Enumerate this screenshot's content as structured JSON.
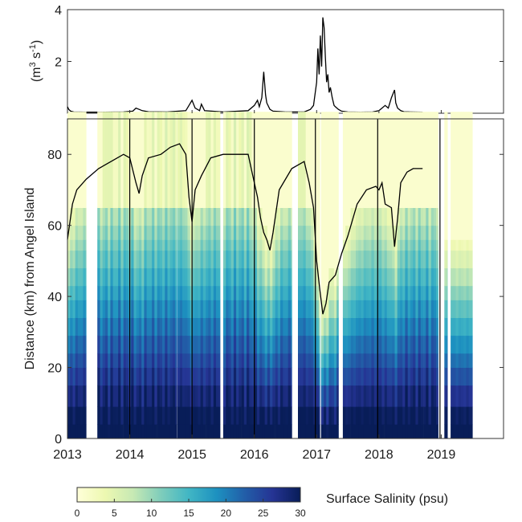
{
  "chart_data": [
    {
      "type": "line",
      "ylabel": "(m³ s⁻¹)",
      "ylabel_parts": {
        "prefix": "(m",
        "sup1": "3",
        "middle": " s",
        "sup2": "-1",
        "suffix": ")"
      },
      "xlim": [
        2013,
        2020
      ],
      "ylim": [
        0,
        4
      ],
      "yticks": [
        2,
        4
      ],
      "grid": false,
      "series": [
        {
          "x": [
            2013.0,
            2013.02,
            2013.05,
            2013.1,
            2013.3,
            2013.6,
            2013.9,
            2014.05,
            2014.1,
            2014.15,
            2014.2,
            2014.3,
            2014.6,
            2014.9,
            2014.95,
            2015.0,
            2015.05,
            2015.12,
            2015.15,
            2015.2,
            2015.5,
            2015.9,
            2016.0,
            2016.05,
            2016.08,
            2016.12,
            2016.15,
            2016.18,
            2016.2,
            2016.25,
            2016.3,
            2016.5,
            2016.8,
            2016.9,
            2016.95,
            2017.0,
            2017.02,
            2017.04,
            2017.06,
            2017.08,
            2017.1,
            2017.12,
            2017.14,
            2017.16,
            2017.18,
            2017.2,
            2017.22,
            2017.25,
            2017.28,
            2017.3,
            2017.35,
            2017.4,
            2017.5,
            2017.7,
            2017.9,
            2018.0,
            2018.1,
            2018.15,
            2018.2,
            2018.25,
            2018.27,
            2018.3,
            2018.35,
            2018.4,
            2018.5,
            2018.7
          ],
          "values": [
            0.25,
            0.15,
            0.08,
            0.05,
            0.04,
            0.04,
            0.05,
            0.08,
            0.2,
            0.15,
            0.1,
            0.06,
            0.05,
            0.1,
            0.3,
            0.5,
            0.2,
            0.1,
            0.35,
            0.1,
            0.05,
            0.1,
            0.3,
            0.5,
            0.25,
            0.6,
            1.6,
            0.7,
            0.4,
            0.15,
            0.08,
            0.05,
            0.05,
            0.15,
            0.3,
            1.2,
            2.5,
            1.5,
            3.0,
            1.8,
            3.7,
            3.3,
            2.2,
            1.2,
            1.5,
            0.8,
            1.0,
            0.6,
            0.3,
            0.25,
            0.15,
            0.08,
            0.05,
            0.04,
            0.05,
            0.1,
            0.3,
            0.2,
            0.6,
            0.9,
            0.4,
            0.2,
            0.1,
            0.06,
            0.05,
            0.04
          ]
        }
      ]
    },
    {
      "type": "heatmap",
      "xlim": [
        2013,
        2020
      ],
      "ylim": [
        0,
        90
      ],
      "xticks": [
        "2013",
        "2014",
        "2015",
        "2016",
        "2017",
        "2018",
        "2019"
      ],
      "xtick_values": [
        2013,
        2014,
        2015,
        2016,
        2017,
        2018,
        2019
      ],
      "yticks": [
        0,
        20,
        40,
        60,
        80
      ],
      "ylabel": "Distance (km) from Angel Island",
      "grid": false,
      "heatmap_distance_bins": [
        [
          0,
          4
        ],
        [
          4,
          9
        ],
        [
          9,
          15
        ],
        [
          15,
          20
        ],
        [
          20,
          24
        ],
        [
          24,
          29
        ],
        [
          29,
          34
        ],
        [
          34,
          39
        ],
        [
          39,
          43
        ],
        [
          43,
          48
        ],
        [
          48,
          53
        ],
        [
          53,
          56
        ],
        [
          56,
          60
        ],
        [
          60,
          65
        ],
        [
          65,
          92
        ]
      ],
      "data_periods": [
        [
          2013.0,
          2013.3
        ],
        [
          2013.48,
          2014.75
        ],
        [
          2014.76,
          2015.45
        ],
        [
          2015.5,
          2016.6
        ],
        [
          2016.7,
          2017.05
        ],
        [
          2017.07,
          2017.35
        ],
        [
          2017.42,
          2018.95
        ],
        [
          2019.05,
          2019.1
        ],
        [
          2019.15,
          2019.5
        ]
      ],
      "vlines": [
        2014.0,
        2015.0,
        2016.0,
        2016.98,
        2017.98,
        2018.98
      ],
      "surface_salinity_psu": {
        "seaward": 30,
        "landward": 0,
        "isohaline_2psu_note": "transition follows the black line",
        "line_x": [
          2013.0,
          2013.08,
          2013.15,
          2013.3,
          2013.5,
          2013.7,
          2013.9,
          2014.0,
          2014.1,
          2014.15,
          2014.2,
          2014.3,
          2014.5,
          2014.65,
          2014.8,
          2014.9,
          2014.95,
          2015.0,
          2015.05,
          2015.15,
          2015.3,
          2015.5,
          2015.7,
          2015.9,
          2016.0,
          2016.05,
          2016.1,
          2016.15,
          2016.2,
          2016.25,
          2016.3,
          2016.4,
          2016.6,
          2016.8,
          2016.88,
          2016.95,
          2017.0,
          2017.05,
          2017.1,
          2017.15,
          2017.2,
          2017.3,
          2017.4,
          2017.5,
          2017.65,
          2017.8,
          2017.95,
          2018.0,
          2018.05,
          2018.1,
          2018.2,
          2018.25,
          2018.3,
          2018.35,
          2018.45,
          2018.55,
          2018.7
        ],
        "line_km": [
          56,
          66,
          70,
          73,
          76,
          78,
          80,
          79,
          72,
          69,
          74,
          79,
          80,
          82,
          83,
          80,
          68,
          61,
          70,
          74,
          79,
          80,
          80,
          80,
          72,
          68,
          62,
          58,
          56,
          53,
          58,
          70,
          76,
          78,
          72,
          65,
          50,
          42,
          35,
          38,
          44,
          46,
          52,
          57,
          66,
          70,
          71,
          70,
          72,
          66,
          65,
          54,
          62,
          72,
          75,
          76,
          76
        ]
      }
    }
  ],
  "colorbar": {
    "title": "Surface Salinity (psu)",
    "min": 0,
    "max": 30,
    "ticks": [
      "0",
      "5",
      "10",
      "15",
      "20",
      "25",
      "30"
    ],
    "colors": [
      "#ffffd9",
      "#edf8b1",
      "#c7e9b4",
      "#7fcdbb",
      "#41b6c4",
      "#1d91c0",
      "#225ea8",
      "#253494",
      "#081d58"
    ]
  }
}
